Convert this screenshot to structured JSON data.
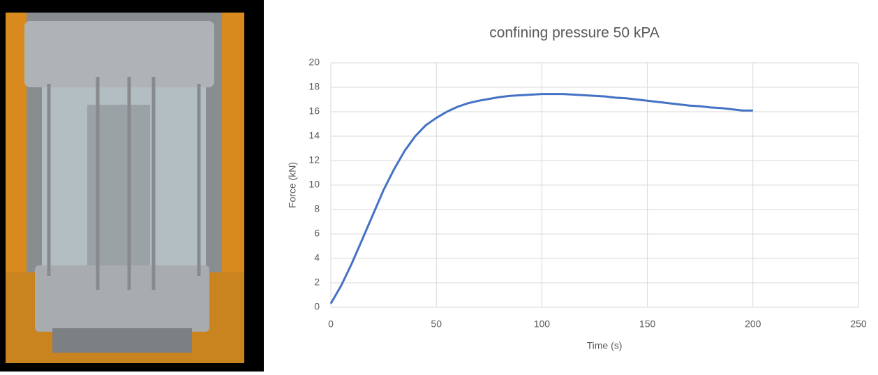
{
  "chart_data": {
    "type": "line",
    "title": "confining pressure 50 kPA",
    "x_label": "Time (s)",
    "y_label": "Force (kN)",
    "x": [
      0,
      5,
      10,
      15,
      20,
      25,
      30,
      35,
      40,
      45,
      50,
      55,
      60,
      65,
      70,
      75,
      80,
      85,
      90,
      95,
      100,
      105,
      110,
      115,
      120,
      125,
      130,
      135,
      140,
      145,
      150,
      155,
      160,
      165,
      170,
      175,
      180,
      185,
      190,
      195,
      200
    ],
    "values": [
      0.3,
      1.8,
      3.6,
      5.6,
      7.6,
      9.6,
      11.3,
      12.8,
      14.0,
      14.9,
      15.5,
      16.0,
      16.4,
      16.7,
      16.9,
      17.05,
      17.2,
      17.3,
      17.35,
      17.4,
      17.45,
      17.45,
      17.45,
      17.4,
      17.35,
      17.3,
      17.25,
      17.15,
      17.1,
      17.0,
      16.9,
      16.8,
      16.7,
      16.6,
      16.5,
      16.45,
      16.35,
      16.3,
      16.2,
      16.1,
      16.1
    ],
    "color": "#4472c4",
    "xlim": [
      0,
      250
    ],
    "xticks": [
      0,
      50,
      100,
      150,
      200,
      250
    ],
    "ylim": [
      0,
      20
    ],
    "yticks": [
      0,
      2,
      4,
      6,
      8,
      10,
      12,
      14,
      16,
      18,
      20
    ],
    "grid": true
  }
}
